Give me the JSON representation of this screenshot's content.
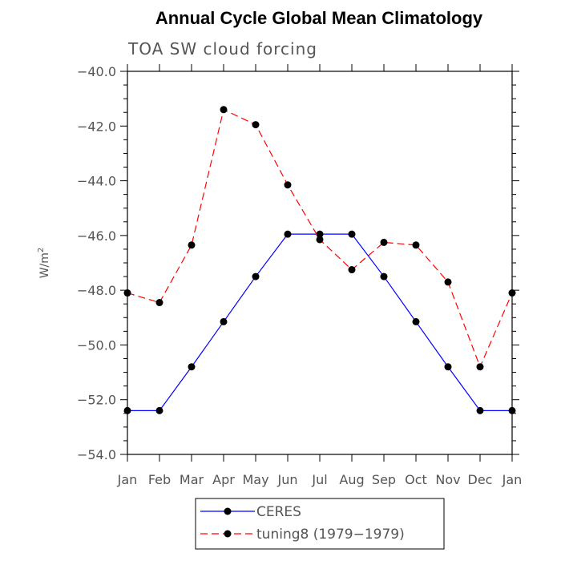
{
  "chart_data": {
    "type": "line",
    "title": "Annual Cycle Global Mean Climatology",
    "subtitle": "TOA SW cloud forcing",
    "ylabel": "W/m",
    "ylabel_sup": "2",
    "xlabel": "",
    "categories": [
      "Jan",
      "Feb",
      "Mar",
      "Apr",
      "May",
      "Jun",
      "Jul",
      "Aug",
      "Sep",
      "Oct",
      "Nov",
      "Dec",
      "Jan"
    ],
    "ylim": [
      -54.0,
      -40.0
    ],
    "yticks": [
      -40.0,
      -42.0,
      -44.0,
      -46.0,
      -48.0,
      -50.0,
      -52.0,
      -54.0
    ],
    "ytick_labels": [
      "−40.0",
      "−42.0",
      "−44.0",
      "−46.0",
      "−48.0",
      "−50.0",
      "−52.0",
      "−54.0"
    ],
    "grid": false,
    "legend_position": "bottom-center",
    "series": [
      {
        "name": "CERES",
        "color": "#0000ff",
        "dash": "solid",
        "values": [
          -52.4,
          -52.4,
          -50.8,
          -49.15,
          -47.5,
          -45.95,
          -45.95,
          -45.95,
          -47.5,
          -49.15,
          -50.8,
          -52.4,
          -52.4
        ]
      },
      {
        "name": "tuning8 (1979−1979)",
        "color": "#ff0000",
        "dash": "dashed",
        "values": [
          -48.1,
          -48.45,
          -46.35,
          -41.4,
          -41.95,
          -44.15,
          -46.15,
          -47.25,
          -46.25,
          -46.35,
          -47.7,
          -50.8,
          -48.1
        ]
      }
    ]
  }
}
